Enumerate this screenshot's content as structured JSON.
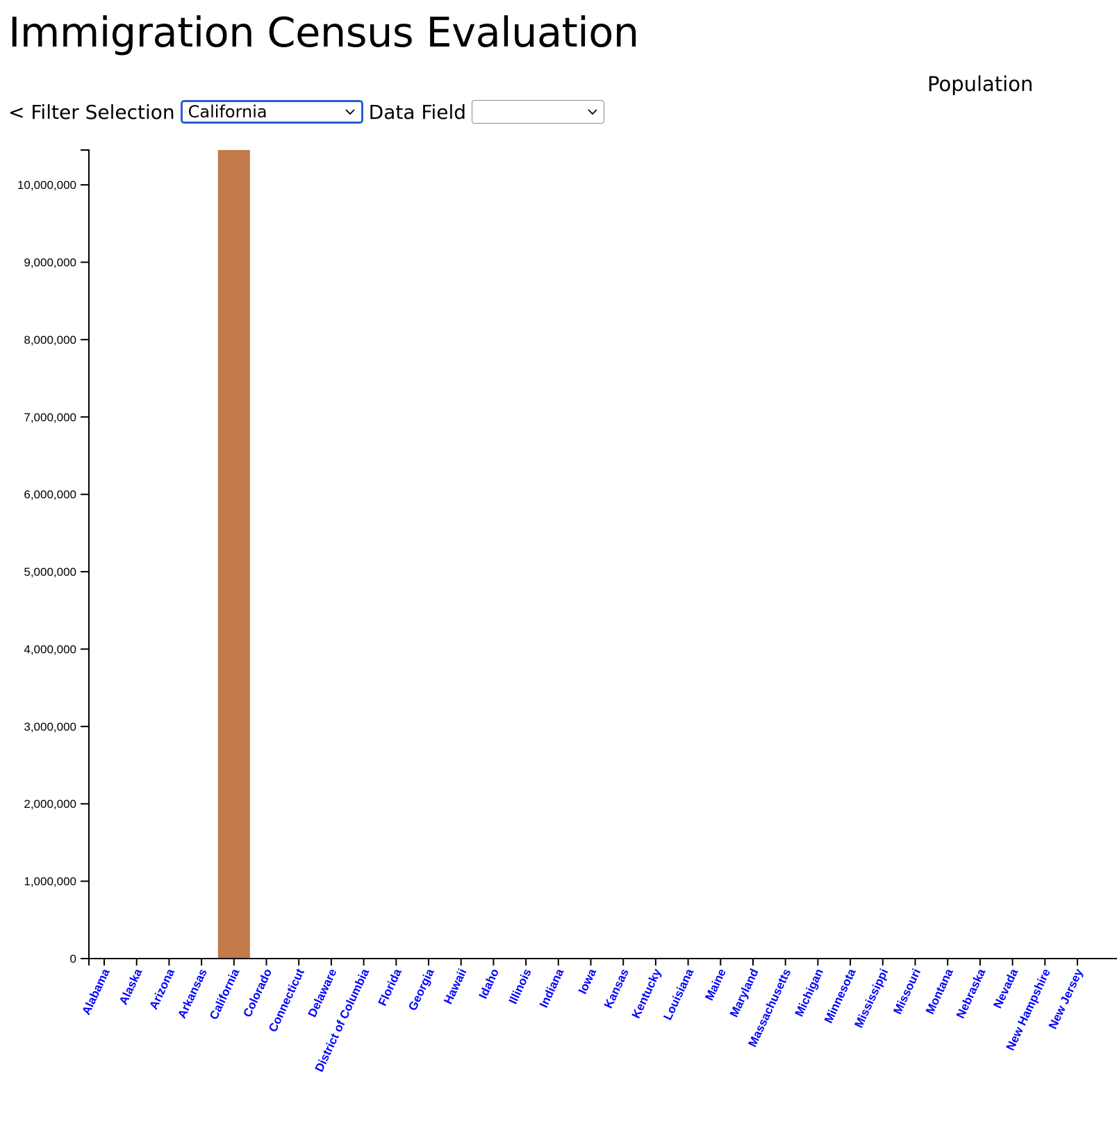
{
  "header": {
    "title": "Immigration Census Evaluation",
    "series_caption": "Population"
  },
  "controls": {
    "filter_label": "< Filter Selection",
    "state_select_value": "California",
    "data_field_label": "Data Field",
    "data_field_value": ""
  },
  "colors": {
    "bar": "#C17A48",
    "tick_label": "#0000FF",
    "focus": "#2A5BD7"
  },
  "chart_data": {
    "type": "bar",
    "title": "",
    "xlabel": "",
    "ylabel": "",
    "ylim": [
      0,
      10450000
    ],
    "yticks": [
      0,
      1000000,
      2000000,
      3000000,
      4000000,
      5000000,
      6000000,
      7000000,
      8000000,
      9000000,
      10000000
    ],
    "ytick_labels": [
      "0",
      "1,000,000",
      "2,000,000",
      "3,000,000",
      "4,000,000",
      "5,000,000",
      "6,000,000",
      "7,000,000",
      "8,000,000",
      "9,000,000",
      "10,000,000"
    ],
    "categories": [
      "Alabama",
      "Alaska",
      "Arizona",
      "Arkansas",
      "California",
      "Colorado",
      "Connecticut",
      "Delaware",
      "District of Columbia",
      "Florida",
      "Georgia",
      "Hawaii",
      "Idaho",
      "Illinois",
      "Indiana",
      "Iowa",
      "Kansas",
      "Kentucky",
      "Louisiana",
      "Maine",
      "Maryland",
      "Massachusetts",
      "Michigan",
      "Minnesota",
      "Mississippi",
      "Missouri",
      "Montana",
      "Nebraska",
      "Nevada",
      "New Hampshire",
      "New Jersey"
    ],
    "values": [
      0,
      0,
      0,
      0,
      10450000,
      0,
      0,
      0,
      0,
      0,
      0,
      0,
      0,
      0,
      0,
      0,
      0,
      0,
      0,
      0,
      0,
      0,
      0,
      0,
      0,
      0,
      0,
      0,
      0,
      0,
      0
    ],
    "grid": false
  }
}
